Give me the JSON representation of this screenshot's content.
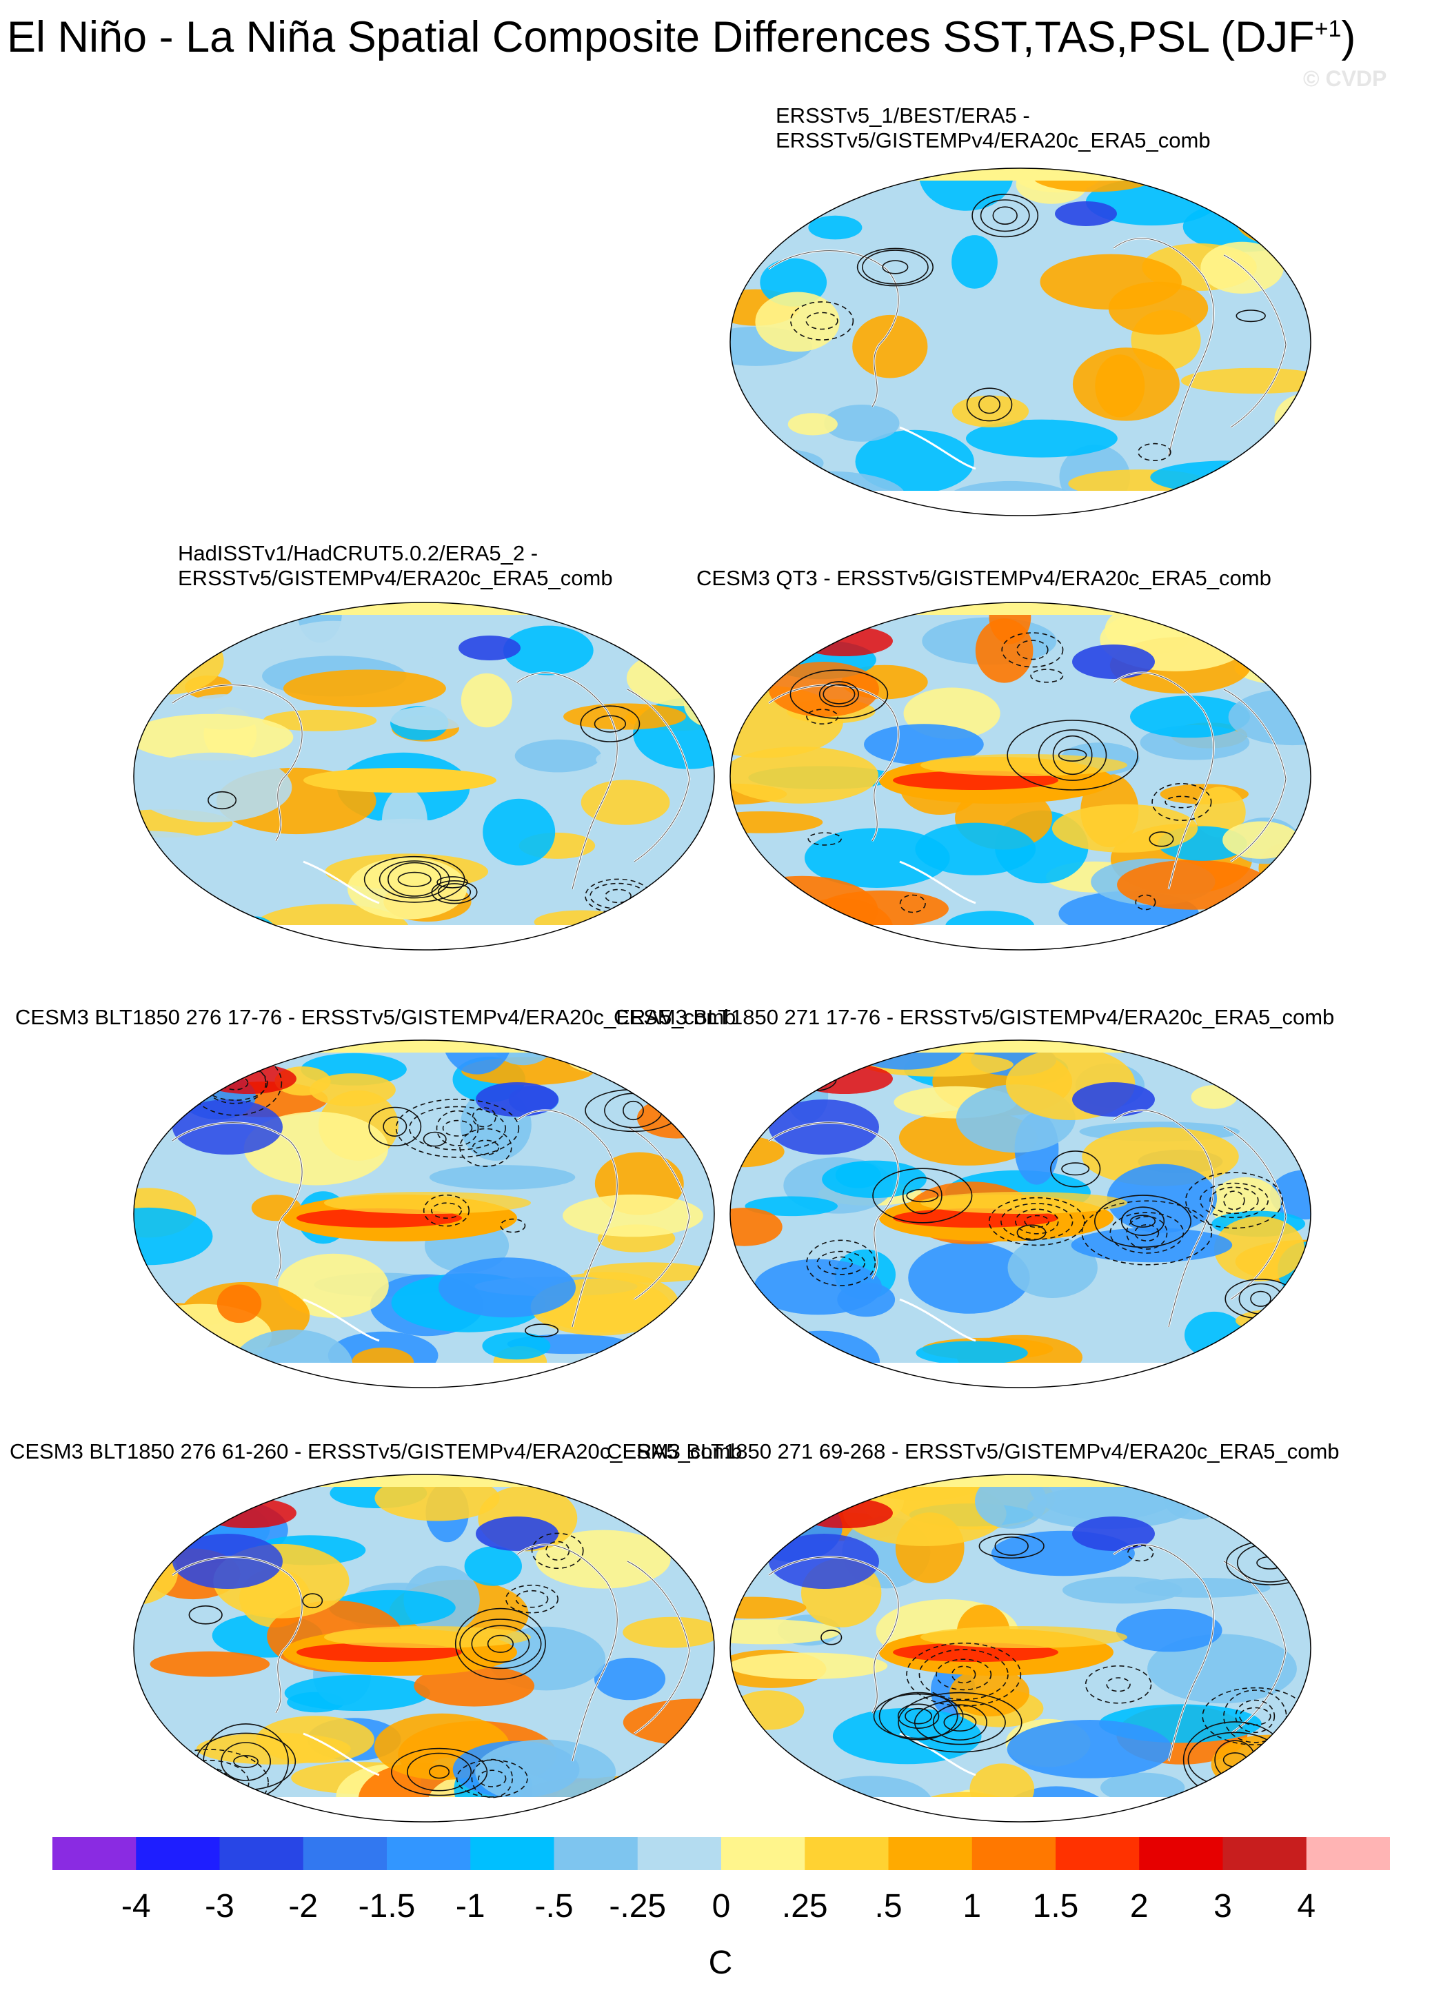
{
  "figure": {
    "title_main": "El Niño - La Niña Spatial Composite Differences SST,TAS,PSL (DJF",
    "title_sup": "+1",
    "title_close": ")",
    "watermark": "© CVDP"
  },
  "panels": [
    {
      "title_line1": "ERSSTv5_1/BEST/ERA5 -",
      "title_line2": "ERSSTv5/GISTEMPv4/ERA20c_ERA5_comb",
      "variant": 0
    },
    {
      "title_line1": "HadISSTv1/HadCRUT5.0.2/ERA5_2 -",
      "title_line2": "ERSSTv5/GISTEMPv4/ERA20c_ERA5_comb",
      "variant": 1
    },
    {
      "title_line1": "",
      "title_line2": "CESM3 QT3 - ERSSTv5/GISTEMPv4/ERA20c_ERA5_comb",
      "variant": 2
    },
    {
      "title_line1": "",
      "title_line2": "CESM3 BLT1850 276 17-76 - ERSSTv5/GISTEMPv4/ERA20c_ERA5_comb",
      "variant": 3
    },
    {
      "title_line1": "",
      "title_line2": "CESM3 BLT1850 271 17-76 - ERSSTv5/GISTEMPv4/ERA20c_ERA5_comb",
      "variant": 4
    },
    {
      "title_line1": "",
      "title_line2": "CESM3 BLT1850 276 61-260 - ERSSTv5/GISTEMPv4/ERA20c_ERA5_comb",
      "variant": 5
    },
    {
      "title_line1": "",
      "title_line2": "CESM3 BLT1850 271 69-268 - ERSSTv5/GISTEMPv4/ERA20c_ERA5_comb",
      "variant": 6
    }
  ],
  "chart_data": {
    "type": "heatmap",
    "projection": "Robinson (global, Pacific-centered)",
    "season": "DJF+1",
    "fields": [
      "SST/TAS (shaded)",
      "PSL (contours)"
    ],
    "colorbar": {
      "unit": "C",
      "ticks": [
        "-4",
        "-3",
        "-2",
        "-1.5",
        "-1",
        "-.5",
        "-.25",
        "0",
        ".25",
        ".5",
        "1",
        "1.5",
        "2",
        "3",
        "4"
      ],
      "colors": [
        "#8a2be2",
        "#1e1eff",
        "#2846e6",
        "#3278f0",
        "#3296ff",
        "#00bfff",
        "#7ec5ef",
        "#b4dcf0",
        "#fff58c",
        "#ffd232",
        "#ffaa00",
        "#ff7800",
        "#ff3200",
        "#e60000",
        "#c81e1e",
        "#ffb4b4"
      ]
    }
  }
}
